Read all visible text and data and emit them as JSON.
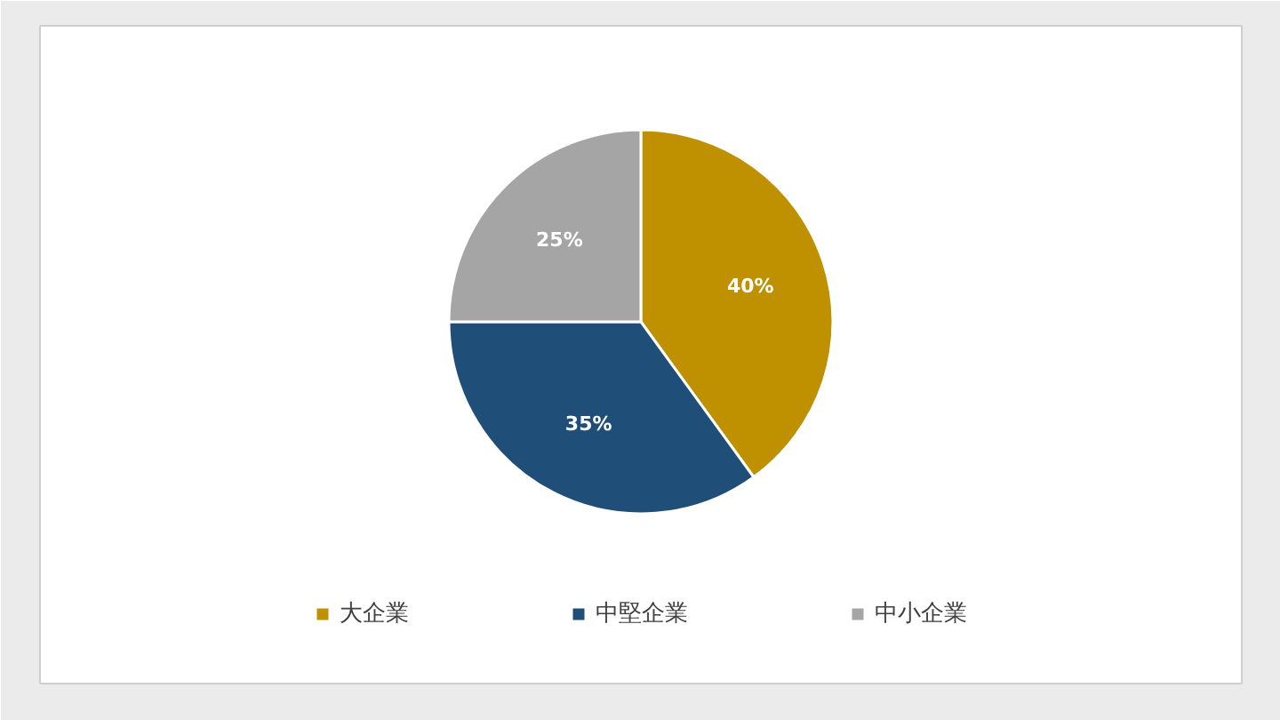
{
  "chart_data": {
    "type": "pie",
    "categories": [
      "大企業",
      "中堅企業",
      "中小企業"
    ],
    "values": [
      40,
      35,
      25
    ],
    "colors": [
      "#bf9000",
      "#1f4e79",
      "#a5a5a5"
    ],
    "value_labels": [
      "40%",
      "35%",
      "25%"
    ],
    "legend": "bottom"
  }
}
